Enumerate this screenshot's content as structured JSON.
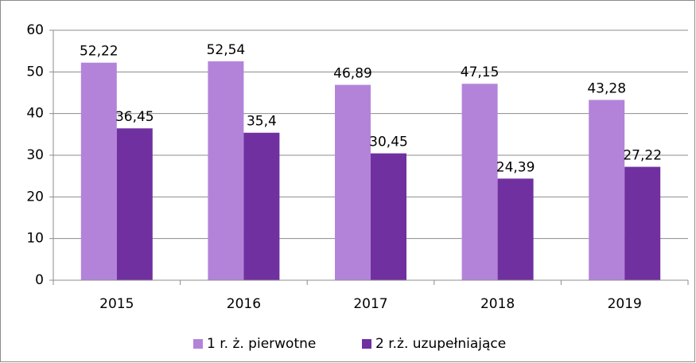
{
  "chart_data": {
    "type": "bar",
    "categories": [
      "2015",
      "2016",
      "2017",
      "2018",
      "2019"
    ],
    "series": [
      {
        "name": "1 r. ż. pierwotne",
        "color": "#b383d9",
        "values": [
          52.22,
          52.54,
          46.89,
          47.15,
          43.28
        ],
        "value_labels": [
          "52,22",
          "52,54",
          "46,89",
          "47,15",
          "43,28"
        ]
      },
      {
        "name": "2 r.ż. uzupełniające",
        "color": "#7030a0",
        "values": [
          36.45,
          35.4,
          30.45,
          24.39,
          27.22
        ],
        "value_labels": [
          "36,45",
          "35,4",
          "30,45",
          "24,39",
          "27,22"
        ]
      }
    ],
    "ylim": [
      0,
      60
    ],
    "yticks": [
      0,
      10,
      20,
      30,
      40,
      50,
      60
    ],
    "grid": true,
    "legend": "bottom"
  }
}
